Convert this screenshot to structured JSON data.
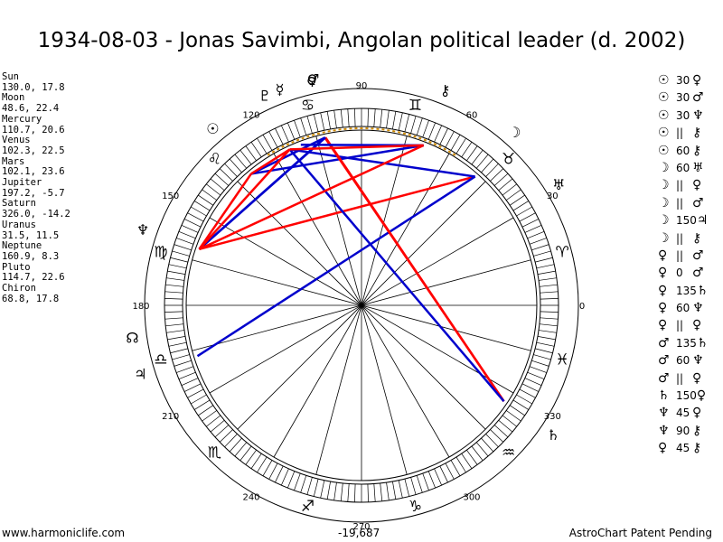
{
  "title": "1934-08-03 - Jonas Savimbi, Angolan political leader (d. 2002)",
  "positions": [
    {
      "name": "Sun",
      "value": "130.0, 17.8"
    },
    {
      "name": "Moon",
      "value": "48.6, 22.4"
    },
    {
      "name": "Mercury",
      "value": "110.7, 20.6"
    },
    {
      "name": "Venus",
      "value": "102.3, 22.5"
    },
    {
      "name": "Mars",
      "value": "102.1, 23.6"
    },
    {
      "name": "Jupiter",
      "value": "197.2, -5.7"
    },
    {
      "name": "Saturn",
      "value": "326.0, -14.2"
    },
    {
      "name": "Uranus",
      "value": "31.5, 11.5"
    },
    {
      "name": "Neptune",
      "value": "160.9, 8.3"
    },
    {
      "name": "Pluto",
      "value": "114.7, 22.6"
    },
    {
      "name": "Chiron",
      "value": "68.8, 17.8"
    }
  ],
  "aspects": [
    {
      "p1": "☉",
      "aspect": "30",
      "p2": "♀"
    },
    {
      "p1": "☉",
      "aspect": "30",
      "p2": "♂"
    },
    {
      "p1": "☉",
      "aspect": "30",
      "p2": "♆"
    },
    {
      "p1": "☉",
      "aspect": "||",
      "p2": "⚷"
    },
    {
      "p1": "☉",
      "aspect": "60",
      "p2": "⚷"
    },
    {
      "p1": "☽",
      "aspect": "60",
      "p2": "♅"
    },
    {
      "p1": "☽",
      "aspect": "||",
      "p2": "♀"
    },
    {
      "p1": "☽",
      "aspect": "||",
      "p2": "♂"
    },
    {
      "p1": "☽",
      "aspect": "150",
      "p2": "♃"
    },
    {
      "p1": "☽",
      "aspect": "||",
      "p2": "⚷"
    },
    {
      "p1": "♀",
      "aspect": "||",
      "p2": "♂"
    },
    {
      "p1": "♀",
      "aspect": "0",
      "p2": "♂"
    },
    {
      "p1": "♀",
      "aspect": "135",
      "p2": "♄"
    },
    {
      "p1": "♀",
      "aspect": "60",
      "p2": "♆"
    },
    {
      "p1": "♀",
      "aspect": "||",
      "p2": "♀"
    },
    {
      "p1": "♂",
      "aspect": "135",
      "p2": "♄"
    },
    {
      "p1": "♂",
      "aspect": "60",
      "p2": "♆"
    },
    {
      "p1": "♂",
      "aspect": "||",
      "p2": "♀"
    },
    {
      "p1": "♄",
      "aspect": "150",
      "p2": "♀"
    },
    {
      "p1": "♆",
      "aspect": "45",
      "p2": "♀"
    },
    {
      "p1": "♆",
      "aspect": "90",
      "p2": "⚷"
    },
    {
      "p1": "♀",
      "aspect": "45",
      "p2": "⚷"
    }
  ],
  "chart_data": {
    "type": "diagram",
    "degree_labels": [
      "0",
      "30",
      "60",
      "90",
      "120",
      "150",
      "180",
      "210",
      "240",
      "270",
      "300",
      "330"
    ],
    "zodiac": [
      {
        "glyph": "♈",
        "lon": 15
      },
      {
        "glyph": "♉",
        "lon": 45
      },
      {
        "glyph": "♊",
        "lon": 75
      },
      {
        "glyph": "♋",
        "lon": 105
      },
      {
        "glyph": "♌",
        "lon": 135
      },
      {
        "glyph": "♍",
        "lon": 165
      },
      {
        "glyph": "♎",
        "lon": 195
      },
      {
        "glyph": "♏",
        "lon": 225
      },
      {
        "glyph": "♐",
        "lon": 255
      },
      {
        "glyph": "♑",
        "lon": 285
      },
      {
        "glyph": "♒",
        "lon": 315
      },
      {
        "glyph": "♓",
        "lon": 345
      }
    ],
    "planets": [
      {
        "glyph": "☉",
        "lon": 130.0
      },
      {
        "glyph": "☽",
        "lon": 48.6
      },
      {
        "glyph": "☿",
        "lon": 110.7
      },
      {
        "glyph": "♀",
        "lon": 102.3
      },
      {
        "glyph": "♂",
        "lon": 102.1
      },
      {
        "glyph": "♃",
        "lon": 197.2
      },
      {
        "glyph": "♄",
        "lon": 326.0
      },
      {
        "glyph": "♅",
        "lon": 31.5
      },
      {
        "glyph": "♆",
        "lon": 160.9
      },
      {
        "glyph": "♇",
        "lon": 114.7
      },
      {
        "glyph": "⚷",
        "lon": 68.8
      },
      {
        "glyph": "☊",
        "lon": 188.0
      }
    ],
    "aspect_lines": [
      {
        "from": 130.0,
        "to": 102.3,
        "color": "#0000cc"
      },
      {
        "from": 130.0,
        "to": 160.9,
        "color": "#ff0000"
      },
      {
        "from": 130.0,
        "to": 68.8,
        "color": "#0000cc"
      },
      {
        "from": 48.6,
        "to": 160.9,
        "color": "#ff0000"
      },
      {
        "from": 48.6,
        "to": 197.2,
        "color": "#0000cc"
      },
      {
        "from": 48.6,
        "to": 114.7,
        "color": "#0000cc"
      },
      {
        "from": 102.3,
        "to": 326.0,
        "color": "#ff0000"
      },
      {
        "from": 102.3,
        "to": 160.9,
        "color": "#0000cc"
      },
      {
        "from": 102.1,
        "to": 326.0,
        "color": "#ff0000"
      },
      {
        "from": 102.1,
        "to": 160.9,
        "color": "#0000cc"
      },
      {
        "from": 326.0,
        "to": 114.7,
        "color": "#0000cc"
      },
      {
        "from": 160.9,
        "to": 114.7,
        "color": "#ff0000"
      },
      {
        "from": 160.9,
        "to": 68.8,
        "color": "#ff0000"
      },
      {
        "from": 110.7,
        "to": 68.8,
        "color": "#0000cc"
      },
      {
        "from": 114.7,
        "to": 68.8,
        "color": "#ff0000"
      },
      {
        "from": 130.0,
        "to": 114.7,
        "color": "#ff0000"
      }
    ],
    "colors": {
      "red": "#ff0000",
      "blue": "#0000cc",
      "dotted": "#cc8800"
    }
  },
  "footer": {
    "left": "www.harmoniclife.com",
    "center": "-19,687",
    "right": "AstroChart Patent Pending"
  }
}
